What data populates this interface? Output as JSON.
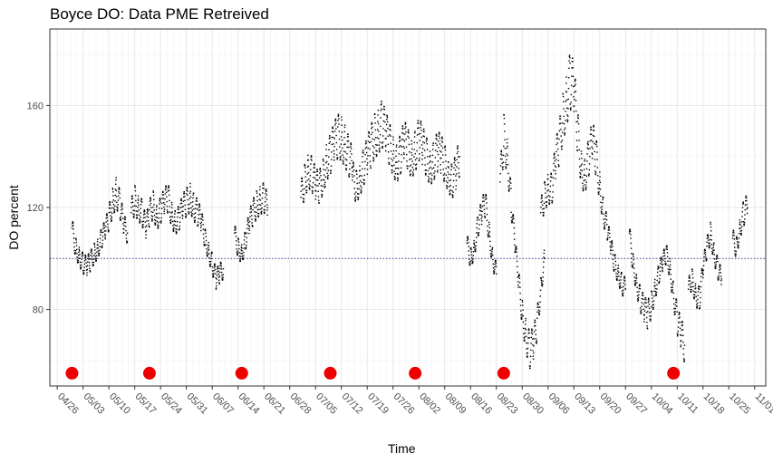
{
  "chart_data": {
    "type": "scatter",
    "title": "Boyce DO: Data PME Retreived",
    "xlabel": "Time",
    "ylabel": "DO percent",
    "x_tick_labels": [
      "04/26",
      "05/03",
      "05/10",
      "05/17",
      "05/24",
      "05/31",
      "06/07",
      "06/14",
      "06/21",
      "06/28",
      "07/05",
      "07/12",
      "07/19",
      "07/26",
      "08/02",
      "08/09",
      "08/16",
      "08/23",
      "08/30",
      "09/06",
      "09/13",
      "09/20",
      "09/27",
      "10/04",
      "10/11",
      "10/18",
      "10/25",
      "11/01"
    ],
    "x_tick_dates": [
      "2019-04-26",
      "2019-05-03",
      "2019-05-10",
      "2019-05-17",
      "2019-05-24",
      "2019-05-31",
      "2019-06-07",
      "2019-06-14",
      "2019-06-21",
      "2019-06-28",
      "2019-07-05",
      "2019-07-12",
      "2019-07-19",
      "2019-07-26",
      "2019-08-02",
      "2019-08-09",
      "2019-08-16",
      "2019-08-23",
      "2019-08-30",
      "2019-09-06",
      "2019-09-13",
      "2019-09-20",
      "2019-09-27",
      "2019-10-04",
      "2019-10-11",
      "2019-10-18",
      "2019-10-25",
      "2019-11-01"
    ],
    "xlim": [
      "2019-04-24",
      "2019-11-04"
    ],
    "y_ticks": [
      80,
      120,
      160
    ],
    "ylim": [
      50,
      190
    ],
    "grid": true,
    "reference_line": {
      "y": 100,
      "style": "dotted",
      "color": "#3a3a9a"
    },
    "pme_retrieved_points": {
      "color": "#ee0000",
      "y": 55,
      "x": [
        "2019-04-30",
        "2019-05-21",
        "2019-06-15",
        "2019-07-09",
        "2019-08-01",
        "2019-08-25",
        "2019-10-10"
      ]
    },
    "series": [
      {
        "color": "#000000",
        "x": [
          "2019-04-30",
          "2019-05-01",
          "2019-05-02",
          "2019-05-03",
          "2019-05-04",
          "2019-05-05",
          "2019-05-06",
          "2019-05-07",
          "2019-05-08",
          "2019-05-09",
          "2019-05-10",
          "2019-05-11",
          "2019-05-12",
          "2019-05-13",
          "2019-05-14",
          "2019-05-15"
        ],
        "y": [
          112,
          104,
          101,
          98,
          97,
          99,
          102,
          104,
          108,
          111,
          116,
          122,
          126,
          121,
          113,
          110
        ]
      },
      {
        "color": "#000000",
        "x": [
          "2019-05-16",
          "2019-05-17",
          "2019-05-18",
          "2019-05-19",
          "2019-05-20",
          "2019-05-21",
          "2019-05-22",
          "2019-05-23",
          "2019-05-24",
          "2019-05-25",
          "2019-05-26",
          "2019-05-27",
          "2019-05-28",
          "2019-05-29",
          "2019-05-30",
          "2019-05-31",
          "2019-06-01",
          "2019-06-02",
          "2019-06-03",
          "2019-06-04",
          "2019-06-05",
          "2019-06-06",
          "2019-06-07",
          "2019-06-08",
          "2019-06-09",
          "2019-06-10"
        ],
        "y": [
          118,
          123,
          120,
          118,
          112,
          118,
          121,
          116,
          119,
          122,
          124,
          117,
          114,
          116,
          120,
          122,
          124,
          120,
          118,
          115,
          108,
          103,
          98,
          92,
          94,
          96
        ]
      },
      {
        "color": "#000000",
        "x": [
          "2019-06-13",
          "2019-06-14",
          "2019-06-15",
          "2019-06-16",
          "2019-06-17",
          "2019-06-18",
          "2019-06-19",
          "2019-06-20",
          "2019-06-21",
          "2019-06-22"
        ],
        "y": [
          110,
          104,
          102,
          107,
          114,
          118,
          121,
          123,
          124,
          120
        ]
      },
      {
        "color": "#000000",
        "x": [
          "2019-07-01",
          "2019-07-02",
          "2019-07-03",
          "2019-07-04",
          "2019-07-05",
          "2019-07-06",
          "2019-07-07",
          "2019-07-08",
          "2019-07-09",
          "2019-07-10",
          "2019-07-11",
          "2019-07-12",
          "2019-07-13",
          "2019-07-14",
          "2019-07-15"
        ],
        "y": [
          124,
          130,
          135,
          133,
          129,
          128,
          132,
          138,
          141,
          145,
          148,
          147,
          144,
          140,
          136
        ]
      },
      {
        "color": "#000000",
        "x": [
          "2019-07-15",
          "2019-07-16",
          "2019-07-17",
          "2019-07-18",
          "2019-07-19",
          "2019-07-20",
          "2019-07-21",
          "2019-07-22",
          "2019-07-23",
          "2019-07-24",
          "2019-07-25",
          "2019-07-26",
          "2019-07-27",
          "2019-07-28",
          "2019-07-29",
          "2019-07-30",
          "2019-07-31",
          "2019-08-01",
          "2019-08-02",
          "2019-08-03",
          "2019-08-04",
          "2019-08-05",
          "2019-08-06",
          "2019-08-07",
          "2019-08-08",
          "2019-08-09",
          "2019-08-10",
          "2019-08-11",
          "2019-08-12",
          "2019-08-13"
        ],
        "y": [
          132,
          128,
          131,
          136,
          140,
          144,
          148,
          150,
          153,
          149,
          145,
          140,
          137,
          141,
          146,
          143,
          139,
          142,
          147,
          144,
          140,
          136,
          138,
          142,
          141,
          137,
          133,
          130,
          134,
          140
        ]
      },
      {
        "color": "#000000",
        "x": [
          "2019-08-15",
          "2019-08-16",
          "2019-08-17",
          "2019-08-18",
          "2019-08-19",
          "2019-08-20",
          "2019-08-21",
          "2019-08-22",
          "2019-08-23"
        ],
        "y": [
          106,
          100,
          104,
          113,
          118,
          122,
          110,
          100,
          94
        ]
      },
      {
        "color": "#000000",
        "x": [
          "2019-08-24",
          "2019-08-25",
          "2019-08-26",
          "2019-08-27",
          "2019-08-28",
          "2019-08-29",
          "2019-08-30",
          "2019-08-31",
          "2019-09-01",
          "2019-09-02",
          "2019-09-03",
          "2019-09-04",
          "2019-09-05"
        ],
        "y": [
          130,
          148,
          140,
          122,
          106,
          92,
          78,
          70,
          64,
          66,
          74,
          88,
          100
        ]
      },
      {
        "color": "#000000",
        "x": [
          "2019-09-04",
          "2019-09-05",
          "2019-09-06",
          "2019-09-07",
          "2019-09-08",
          "2019-09-09",
          "2019-09-10",
          "2019-09-11",
          "2019-09-12",
          "2019-09-13",
          "2019-09-14",
          "2019-09-15",
          "2019-09-16",
          "2019-09-17",
          "2019-09-18",
          "2019-09-19",
          "2019-09-20",
          "2019-09-21",
          "2019-09-22",
          "2019-09-23",
          "2019-09-24",
          "2019-09-25",
          "2019-09-26",
          "2019-09-27"
        ],
        "y": [
          118,
          124,
          128,
          127,
          138,
          145,
          155,
          162,
          170,
          166,
          150,
          135,
          132,
          140,
          146,
          140,
          128,
          118,
          112,
          105,
          98,
          94,
          90,
          88
        ]
      },
      {
        "color": "#000000",
        "x": [
          "2019-09-28",
          "2019-09-29",
          "2019-09-30",
          "2019-10-01",
          "2019-10-02",
          "2019-10-03",
          "2019-10-04",
          "2019-10-05",
          "2019-10-06",
          "2019-10-07",
          "2019-10-08",
          "2019-10-09",
          "2019-10-10",
          "2019-10-11",
          "2019-10-12",
          "2019-10-13"
        ],
        "y": [
          110,
          98,
          90,
          84,
          80,
          78,
          82,
          88,
          94,
          98,
          102,
          96,
          86,
          76,
          70,
          66
        ]
      },
      {
        "color": "#000000",
        "x": [
          "2019-10-14",
          "2019-10-15",
          "2019-10-16",
          "2019-10-17",
          "2019-10-18",
          "2019-10-19",
          "2019-10-20",
          "2019-10-21",
          "2019-10-22",
          "2019-10-23"
        ],
        "y": [
          88,
          92,
          86,
          84,
          96,
          104,
          110,
          102,
          96,
          92
        ]
      },
      {
        "color": "#000000",
        "x": [
          "2019-10-26",
          "2019-10-27",
          "2019-10-28",
          "2019-10-29",
          "2019-10-30"
        ],
        "y": [
          108,
          104,
          112,
          118,
          120
        ]
      }
    ]
  }
}
